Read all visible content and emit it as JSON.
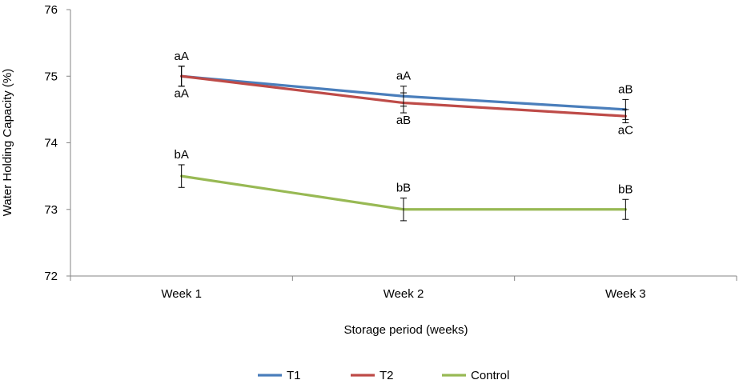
{
  "chart_data": {
    "type": "line",
    "title": "",
    "xlabel": "Storage period (weeks)",
    "ylabel": "Water Holding Capacity (%)",
    "categories": [
      "Week 1",
      "Week 2",
      "Week 3"
    ],
    "ylim": [
      72,
      76
    ],
    "yticks": [
      72,
      73,
      74,
      75,
      76
    ],
    "grid": false,
    "legend_position": "bottom",
    "series": [
      {
        "name": "T1",
        "color": "#4a7ebb",
        "values": [
          75.0,
          74.7,
          74.5
        ],
        "errors": [
          0.15,
          0.15,
          0.15
        ],
        "annotations": [
          "aA",
          "aA",
          "aB"
        ],
        "annotation_side": [
          "above",
          "above",
          "above"
        ]
      },
      {
        "name": "T2",
        "color": "#be4b48",
        "values": [
          75.0,
          74.6,
          74.4
        ],
        "errors": [
          0.15,
          0.15,
          0.1
        ],
        "annotations": [
          "aA",
          "aB",
          "aC"
        ],
        "annotation_side": [
          "below",
          "below",
          "below"
        ]
      },
      {
        "name": "Control",
        "color": "#98b954",
        "values": [
          73.5,
          73.0,
          73.0
        ],
        "errors": [
          0.17,
          0.17,
          0.15
        ],
        "annotations": [
          "bA",
          "bB",
          "bB"
        ],
        "annotation_side": [
          "above",
          "above",
          "above"
        ]
      }
    ]
  }
}
